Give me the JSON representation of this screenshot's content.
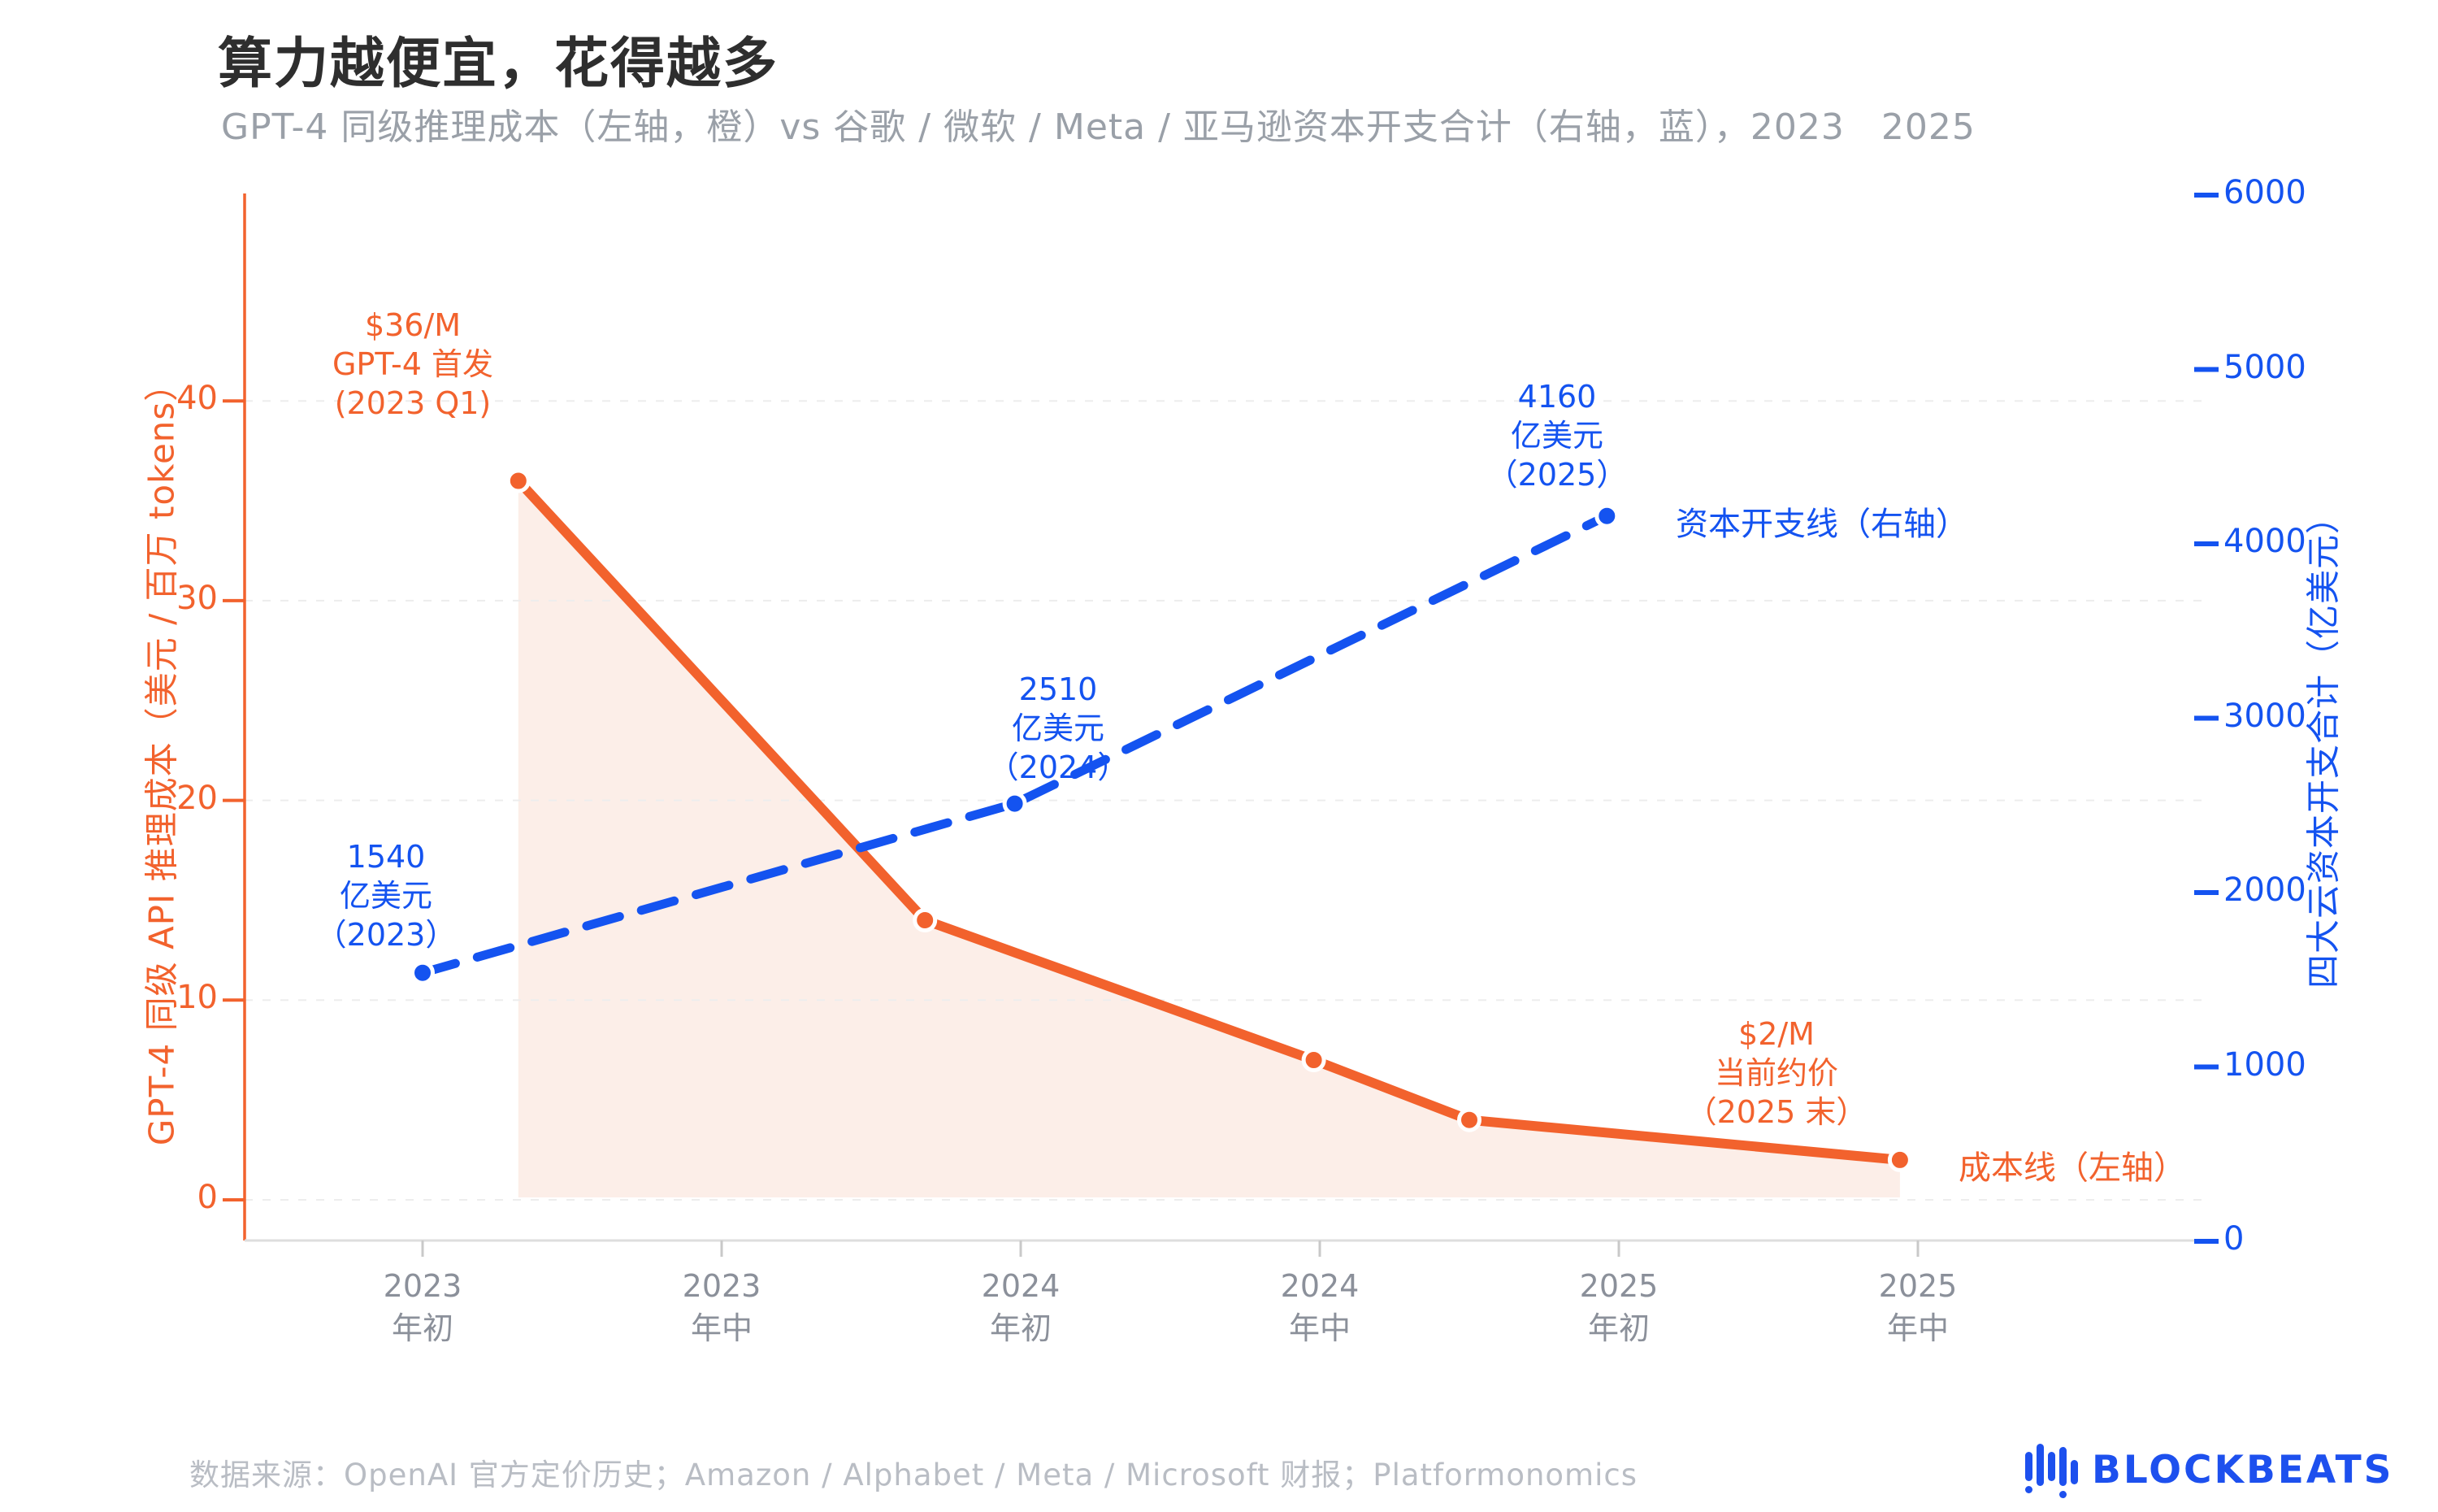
{
  "title": "算力越便宜，花得越多",
  "subtitle": "GPT-4 同级推理成本（左轴，橙）vs 谷歌 / 微软 / Meta / 亚马逊资本开支合计（右轴，蓝），2023　2025",
  "footer": "数据来源：OpenAI 官方定价历史；Amazon / Alphabet / Meta / Microsoft 财报；Platformonomics",
  "logo": {
    "text": "BLOCKBEATS"
  },
  "colors": {
    "orange": "#f2622d",
    "blue": "#1453f0",
    "area_fill": "#fceee8",
    "gridline": "#ededed",
    "baseline": "#dedede",
    "x_tick": "#c9c9c9",
    "x_label": "#8b909a",
    "title_text": "#2e2e2e",
    "subtitle_text": "#9aa0a8",
    "footer_text": "#b9bdc4"
  },
  "axes": {
    "left": {
      "title": "GPT-4 同级 API 推理成本（美元 / 百万 tokens）",
      "tick_labels": [
        "0",
        "10",
        "20",
        "30",
        "40"
      ],
      "tick_values": [
        0,
        10,
        20,
        30,
        40
      ]
    },
    "right": {
      "title": "四大云资本开支合计（亿美元）",
      "tick_labels": [
        "0",
        "1000",
        "2000",
        "3000",
        "4000",
        "5000",
        "6000"
      ],
      "tick_values": [
        0,
        1000,
        2000,
        3000,
        4000,
        5000,
        6000
      ]
    },
    "x": {
      "tick_labels": [
        "2023\n年初",
        "2023\n年中",
        "2024\n年初",
        "2024\n年中",
        "2025\n年初",
        "2025\n年中"
      ],
      "tick_years": [
        2023,
        2023.5,
        2024,
        2024.5,
        2025,
        2025.5
      ]
    }
  },
  "annotations": {
    "gpt4_launch": "$36/M\nGPT-4 首发\n(2023 Q1)",
    "capex_2023": "1540\n亿美元\n（2023）",
    "capex_2024": "2510\n亿美元\n（2024）",
    "capex_2025": "4160\n亿美元\n（2025）",
    "price_now": "$2/M\n当前约价\n（2025 末）",
    "capex_line_label": "资本开支线（右轴）",
    "cost_line_label": "成本线（左轴）"
  },
  "chart_data": {
    "type": "line",
    "title": "算力越便宜，花得越多",
    "xlim": [
      2022.7,
      2025.8
    ],
    "left_ylim": [
      0,
      50
    ],
    "right_ylim": [
      0,
      6000
    ],
    "grid": "horizontal-left-ticks",
    "series": [
      {
        "name": "GPT-4 同级推理成本（美元 / 百万 tokens）",
        "axis": "left",
        "style": "solid",
        "color": "#f2622d",
        "area_fill": true,
        "x": [
          2023.16,
          2023.84,
          2024.49,
          2024.75,
          2025.47
        ],
        "values": [
          36,
          14,
          7,
          4,
          2
        ]
      },
      {
        "name": "四大云资本开支合计（亿美元）",
        "axis": "right",
        "style": "dashed",
        "color": "#1453f0",
        "area_fill": false,
        "x": [
          2023.0,
          2023.99,
          2024.98
        ],
        "values": [
          1540,
          2510,
          4160
        ]
      }
    ]
  }
}
